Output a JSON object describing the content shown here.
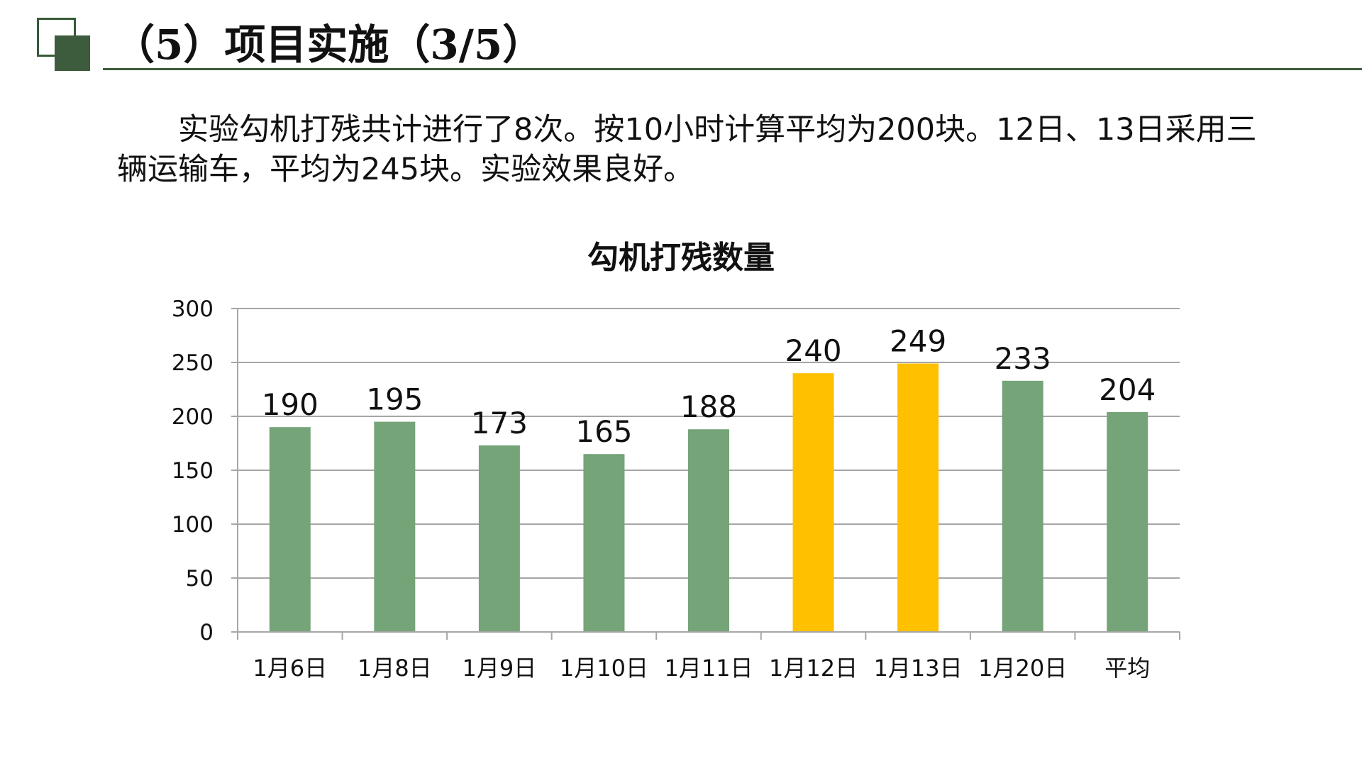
{
  "title": "（5）项目实施（3/5）",
  "intro": "实验勾机打残共计进行了8次。按10小时计算平均为200块。12日、13日采用三辆运输车，平均为245块。实验效果良好。",
  "colors": {
    "bar_default": "#74a478",
    "bar_highlight": "#ffc000",
    "accent": "#3d5c3d",
    "grid": "#a6a6a6"
  },
  "chart_data": {
    "type": "bar",
    "title": "勾机打残数量",
    "categories": [
      "1月6日",
      "1月8日",
      "1月9日",
      "1月10日",
      "1月11日",
      "1月12日",
      "1月13日",
      "1月20日",
      "平均"
    ],
    "values": [
      190,
      195,
      173,
      165,
      188,
      240,
      249,
      233,
      204
    ],
    "highlighted": [
      "1月12日",
      "1月13日"
    ],
    "ylim": [
      0,
      300
    ],
    "yticks": [
      0,
      50,
      100,
      150,
      200,
      250,
      300
    ],
    "data_labels": true,
    "grid": true,
    "legend": "none"
  }
}
